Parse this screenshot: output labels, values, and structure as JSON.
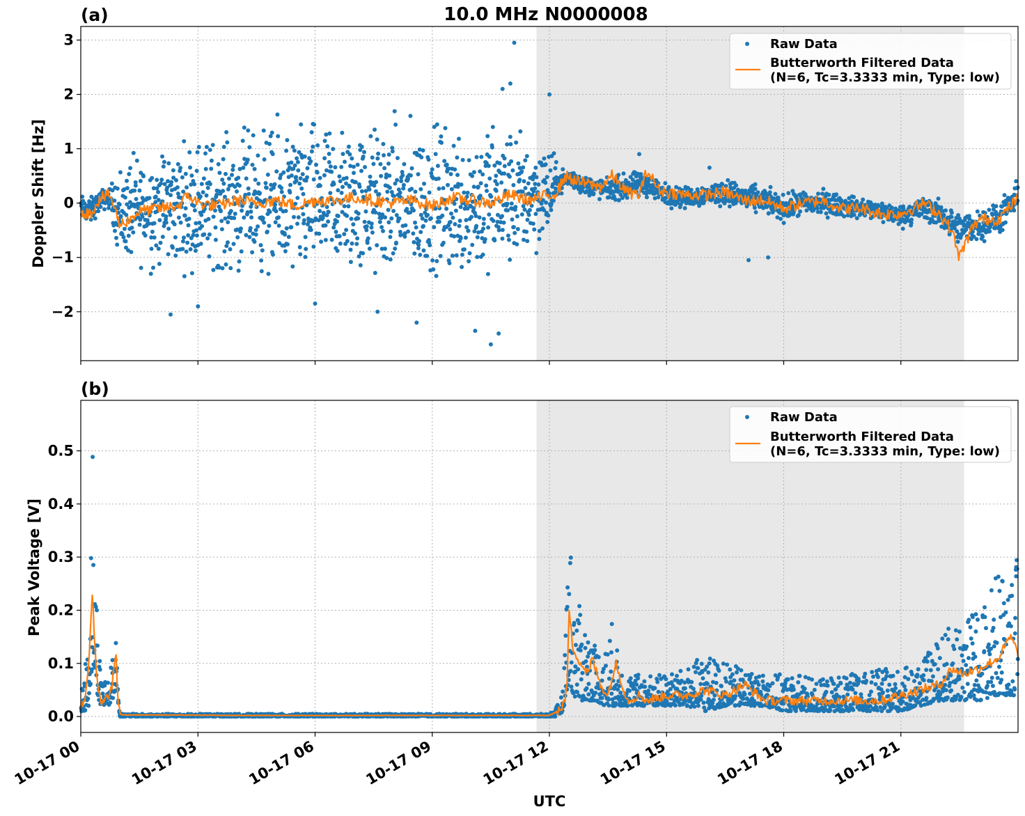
{
  "figure": {
    "title": "10.0 MHz N0000008",
    "xlabel": "UTC"
  },
  "chart_data": [
    {
      "type": "scatter",
      "panel_label": "(a)",
      "ylabel": "Doppler Shift [Hz]",
      "ylim": [
        -2.9,
        3.25
      ],
      "yticks": [
        3,
        2,
        1,
        0,
        -1,
        -2
      ],
      "ytick_labels": [
        "3",
        "2",
        "1",
        "0",
        "−2"
      ],
      "ytick_labels_full": [
        "3",
        "2",
        "1",
        "0",
        "−1",
        "−2"
      ],
      "xlim_hours": [
        0,
        24
      ],
      "xticks_hours": [
        0,
        3,
        6,
        9,
        12,
        15,
        18,
        21
      ],
      "xtick_labels": [],
      "grid": true,
      "shaded_interval_hours": [
        11.67,
        22.62
      ],
      "shaded_color": "#e8e8e8",
      "legend_placement": "top-right",
      "series": [
        {
          "name": "Raw Data",
          "style": "points",
          "color": "#1f77b4",
          "x_hours": [
            0,
            0.25,
            0.5,
            0.75,
            1,
            1.5,
            2,
            2.5,
            3,
            3.5,
            4,
            4.5,
            5,
            5.5,
            6,
            6.5,
            7,
            7.5,
            8,
            8.5,
            9,
            9.5,
            10,
            10.5,
            11,
            11.5,
            12,
            12.25,
            12.5,
            13,
            13.5,
            14,
            14.5,
            15,
            15.5,
            16,
            16.5,
            17,
            17.5,
            18,
            18.5,
            19,
            19.5,
            20,
            20.5,
            21,
            21.5,
            22,
            22.5,
            23,
            23.5,
            24
          ],
          "y_center": [
            -0.1,
            -0.15,
            0.05,
            0.1,
            -0.2,
            -0.1,
            -0.1,
            -0.05,
            0,
            0,
            0,
            0.05,
            0,
            0,
            0.05,
            0,
            0.05,
            0,
            0.05,
            0,
            0,
            0.05,
            0,
            0.05,
            0.1,
            0.15,
            0.2,
            0.4,
            0.45,
            0.3,
            0.25,
            0.3,
            0.35,
            0.15,
            0.1,
            0.15,
            0.2,
            0.1,
            0.05,
            -0.1,
            0,
            0,
            -0.05,
            -0.1,
            -0.15,
            -0.25,
            -0.1,
            -0.2,
            -0.5,
            -0.4,
            -0.3,
            0.1
          ],
          "y_spread": [
            0.25,
            0.25,
            0.2,
            0.2,
            0.9,
            1.0,
            1.1,
            1.1,
            1.2,
            1.2,
            1.3,
            1.3,
            1.4,
            1.4,
            1.4,
            1.4,
            1.4,
            1.4,
            1.4,
            1.4,
            1.4,
            1.4,
            1.4,
            1.4,
            1.3,
            1.1,
            0.9,
            0.2,
            0.2,
            0.2,
            0.2,
            0.25,
            0.25,
            0.2,
            0.2,
            0.2,
            0.25,
            0.25,
            0.25,
            0.25,
            0.25,
            0.25,
            0.2,
            0.2,
            0.2,
            0.2,
            0.25,
            0.25,
            0.3,
            0.3,
            0.3,
            0.3
          ],
          "outliers": [
            [
              2.3,
              -2.05
            ],
            [
              3.0,
              -1.9
            ],
            [
              6.0,
              -1.85
            ],
            [
              7.6,
              -2.0
            ],
            [
              8.6,
              -2.2
            ],
            [
              10.5,
              -2.6
            ],
            [
              10.7,
              -2.4
            ],
            [
              10.1,
              -2.35
            ],
            [
              11.1,
              2.95
            ],
            [
              11.0,
              2.2
            ],
            [
              10.8,
              2.1
            ],
            [
              12.0,
              2.0
            ],
            [
              17.1,
              -1.05
            ],
            [
              17.6,
              -1.0
            ],
            [
              16.1,
              0.65
            ],
            [
              14.3,
              0.9
            ]
          ]
        },
        {
          "name": "Butterworth Filtered Data\n(N=6, Tc=3.3333 min, Type: low)",
          "legend_line1": "Butterworth Filtered Data",
          "legend_line2": "(N=6, Tc=3.3333 min, Type: low)",
          "style": "line",
          "color": "#ff7f0e",
          "x_hours": [
            0,
            0.25,
            0.5,
            0.75,
            1,
            1.25,
            1.5,
            2,
            2.5,
            2.75,
            3,
            3.5,
            4,
            4.5,
            5,
            5.5,
            6,
            6.5,
            7,
            7.5,
            8,
            8.5,
            9,
            9.5,
            10,
            10.5,
            11,
            11.5,
            12,
            12.2,
            12.4,
            12.7,
            13,
            13.3,
            13.6,
            14,
            14.3,
            14.5,
            14.8,
            15,
            15.5,
            16,
            16.5,
            17,
            17.5,
            18,
            18.5,
            19,
            19.5,
            20,
            20.5,
            21,
            21.3,
            21.6,
            22,
            22.3,
            22.5,
            22.8,
            23,
            23.5,
            24
          ],
          "y": [
            -0.15,
            -0.2,
            0.1,
            0.15,
            -0.4,
            -0.3,
            -0.15,
            -0.1,
            -0.05,
            0.15,
            0,
            -0.05,
            0.05,
            0,
            0.05,
            -0.05,
            0.05,
            0.05,
            0.1,
            0.05,
            0,
            0.05,
            -0.05,
            0.1,
            0.05,
            0,
            0.15,
            0.05,
            0.15,
            0.2,
            0.5,
            0.4,
            0.35,
            0.3,
            0.5,
            0.2,
            0.15,
            0.6,
            0.25,
            0.2,
            0.15,
            0.15,
            0.2,
            0.05,
            0.05,
            -0.1,
            0,
            0.05,
            -0.1,
            -0.1,
            -0.2,
            -0.2,
            -0.1,
            0,
            -0.2,
            -0.5,
            -1.0,
            -0.5,
            -0.3,
            -0.3,
            0.1
          ]
        }
      ]
    },
    {
      "type": "scatter",
      "panel_label": "(b)",
      "ylabel": "Peak Voltage [V]",
      "ylim": [
        -0.03,
        0.595
      ],
      "yticks": [
        0.0,
        0.1,
        0.2,
        0.3,
        0.4,
        0.5
      ],
      "ytick_labels": [
        "0.0",
        "0.1",
        "0.2",
        "0.3",
        "0.4",
        "0.5"
      ],
      "xlim_hours": [
        0,
        24
      ],
      "xticks_hours": [
        0,
        3,
        6,
        9,
        12,
        15,
        18,
        21
      ],
      "xtick_labels": [
        "10-17 00",
        "10-17 03",
        "10-17 06",
        "10-17 09",
        "10-17 12",
        "10-17 15",
        "10-17 18",
        "10-17 21"
      ],
      "grid": true,
      "shaded_interval_hours": [
        11.67,
        22.62
      ],
      "shaded_color": "#e8e8e8",
      "legend_placement": "top-right",
      "series": [
        {
          "name": "Raw Data",
          "style": "points",
          "color": "#1f77b4",
          "x_hours": [
            0,
            0.1,
            0.2,
            0.25,
            0.3,
            0.35,
            0.4,
            0.5,
            0.6,
            0.7,
            0.8,
            0.85,
            0.9,
            0.95,
            1.0,
            2,
            4,
            6,
            8,
            10,
            11,
            11.5,
            12,
            12.2,
            12.35,
            12.45,
            12.5,
            12.6,
            12.8,
            13,
            13.2,
            13.4,
            13.6,
            13.8,
            14,
            14.5,
            15,
            15.5,
            16,
            16.5,
            17,
            17.5,
            18,
            18.5,
            19,
            19.5,
            20,
            20.5,
            21,
            21.5,
            22,
            22.5,
            23,
            23.5,
            24
          ],
          "y_low": [
            0.01,
            0.01,
            0.02,
            0.05,
            0.1,
            0.08,
            0.05,
            0.02,
            0.02,
            0.02,
            0.03,
            0.04,
            0.05,
            0.03,
            0.0,
            0.0,
            0.0,
            0.0,
            0.0,
            0.0,
            0.0,
            0.0,
            0.0,
            0.0,
            0.01,
            0.05,
            0.07,
            0.04,
            0.03,
            0.03,
            0.03,
            0.02,
            0.02,
            0.02,
            0.02,
            0.02,
            0.02,
            0.02,
            0.01,
            0.02,
            0.02,
            0.02,
            0.01,
            0.01,
            0.01,
            0.01,
            0.01,
            0.01,
            0.01,
            0.02,
            0.03,
            0.03,
            0.03,
            0.04,
            0.04
          ],
          "y_high": [
            0.04,
            0.08,
            0.22,
            0.3,
            0.57,
            0.3,
            0.25,
            0.1,
            0.08,
            0.08,
            0.1,
            0.15,
            0.22,
            0.05,
            0.005,
            0.005,
            0.005,
            0.005,
            0.005,
            0.005,
            0.005,
            0.005,
            0.005,
            0.02,
            0.05,
            0.28,
            0.39,
            0.25,
            0.2,
            0.17,
            0.14,
            0.12,
            0.18,
            0.1,
            0.08,
            0.08,
            0.08,
            0.09,
            0.12,
            0.1,
            0.09,
            0.08,
            0.08,
            0.08,
            0.07,
            0.08,
            0.08,
            0.09,
            0.09,
            0.1,
            0.15,
            0.19,
            0.2,
            0.28,
            0.3
          ]
        },
        {
          "name": "Butterworth Filtered Data\n(N=6, Tc=3.3333 min, Type: low)",
          "legend_line1": "Butterworth Filtered Data",
          "legend_line2": "(N=6, Tc=3.3333 min, Type: low)",
          "style": "line",
          "color": "#ff7f0e",
          "x_hours": [
            0,
            0.1,
            0.2,
            0.25,
            0.3,
            0.35,
            0.4,
            0.5,
            0.6,
            0.7,
            0.8,
            0.9,
            0.95,
            1.0,
            1.1,
            2,
            4,
            6,
            8,
            10,
            11,
            12,
            12.2,
            12.35,
            12.45,
            12.5,
            12.6,
            12.8,
            13,
            13.1,
            13.3,
            13.5,
            13.7,
            14,
            14.3,
            14.5,
            15,
            15.5,
            16,
            16.5,
            17,
            17.5,
            18,
            18.5,
            19,
            19.5,
            20,
            20.5,
            21,
            21.5,
            22,
            22.3,
            22.6,
            23,
            23.5,
            23.8,
            24
          ],
          "y": [
            0.02,
            0.03,
            0.1,
            0.16,
            0.24,
            0.15,
            0.08,
            0.03,
            0.03,
            0.04,
            0.06,
            0.12,
            0.04,
            0.005,
            0.003,
            0.003,
            0.002,
            0.002,
            0.002,
            0.002,
            0.002,
            0.002,
            0.01,
            0.02,
            0.05,
            0.2,
            0.13,
            0.1,
            0.08,
            0.11,
            0.06,
            0.04,
            0.1,
            0.03,
            0.04,
            0.03,
            0.04,
            0.04,
            0.05,
            0.04,
            0.06,
            0.03,
            0.03,
            0.03,
            0.03,
            0.03,
            0.03,
            0.03,
            0.04,
            0.05,
            0.06,
            0.09,
            0.08,
            0.09,
            0.11,
            0.15,
            0.12
          ]
        }
      ]
    }
  ]
}
